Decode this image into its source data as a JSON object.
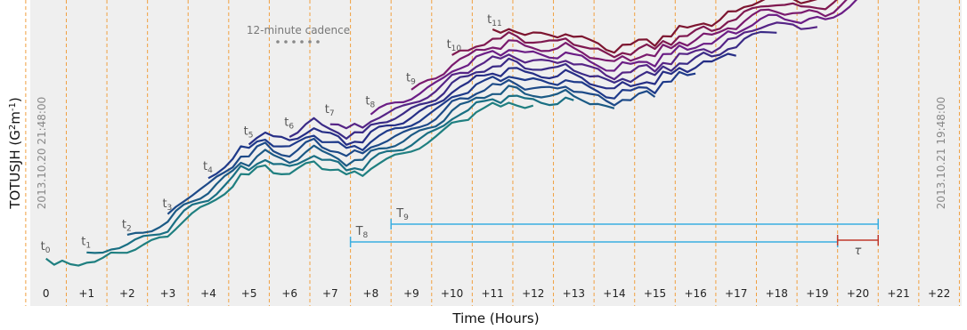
{
  "chart_data": {
    "type": "line",
    "title": "",
    "xlabel": "Time (Hours)",
    "ylabel_base": "TOTUSJH (G",
    "ylabel_sup1": "2",
    "ylabel_mid": "m",
    "ylabel_sup2": "-1",
    "ylabel_end": ")",
    "xlim": [
      -0.3,
      22.6
    ],
    "hour_ticks": [
      "0",
      "+1",
      "+2",
      "+3",
      "+4",
      "+5",
      "+6",
      "+7",
      "+8",
      "+9",
      "+10",
      "+11",
      "+12",
      "+13",
      "+14",
      "+15",
      "+16",
      "+17",
      "+18",
      "+19",
      "+20",
      "+21",
      "+22"
    ],
    "grid": "vertical dashed orange at every hour",
    "start_date": "2013.10.20 21:48:00",
    "end_date": "2013.10.21 19:48:00",
    "cadence_label": "12-minute cadence",
    "window_labels": [
      {
        "prefix": "t",
        "sub": "0",
        "hour": 0
      },
      {
        "prefix": "t",
        "sub": "1",
        "hour": 1
      },
      {
        "prefix": "t",
        "sub": "2",
        "hour": 2
      },
      {
        "prefix": "t",
        "sub": "3",
        "hour": 3
      },
      {
        "prefix": "t",
        "sub": "4",
        "hour": 4
      },
      {
        "prefix": "t",
        "sub": "5",
        "hour": 5
      },
      {
        "prefix": "t",
        "sub": "6",
        "hour": 6
      },
      {
        "prefix": "t",
        "sub": "7",
        "hour": 7
      },
      {
        "prefix": "t",
        "sub": "8",
        "hour": 8
      },
      {
        "prefix": "t",
        "sub": "9",
        "hour": 9
      },
      {
        "prefix": "t",
        "sub": "10",
        "hour": 10
      },
      {
        "prefix": "t",
        "sub": "11",
        "hour": 11
      }
    ],
    "intervals": [
      {
        "prefix": "T",
        "sub": "8",
        "start": 8,
        "end": 20,
        "color": "#3aaee0"
      },
      {
        "prefix": "T",
        "sub": "9",
        "start": 9,
        "end": 21,
        "color": "#3aaee0"
      },
      {
        "prefix": "τ",
        "sub": "",
        "start": 20,
        "end": 21,
        "color": "#c0392b"
      }
    ],
    "series_colors": [
      "#1f7f80",
      "#196f83",
      "#1b5a85",
      "#1d4a88",
      "#1e3a8a",
      "#262e86",
      "#3a2a86",
      "#552486",
      "#6b1d85",
      "#7a1a6e",
      "#7f1850",
      "#7d1530"
    ],
    "series_count": 12,
    "series_span_hours": 12,
    "base_curve": {
      "x": [
        0,
        0.2,
        0.4,
        0.7,
        1.0,
        1.3,
        1.6,
        2.0,
        2.3,
        2.6,
        3.0,
        3.3,
        3.6,
        4.0,
        4.3,
        4.6,
        4.8,
        5.0,
        5.2,
        5.4,
        5.6,
        5.8,
        6.0,
        6.2,
        6.4,
        6.6,
        6.8,
        7.0,
        7.2,
        7.4,
        7.6,
        7.8,
        8.0,
        8.2,
        8.5,
        8.8,
        9.0,
        9.3,
        9.6,
        9.8,
        10.0,
        10.2,
        10.4,
        10.6,
        10.8,
        11.0,
        11.2,
        11.4,
        11.6,
        11.8,
        12.0,
        12.3,
        12.6,
        12.9,
        13.0,
        13.2,
        13.4,
        13.6,
        13.8,
        14.0,
        14.2,
        14.4,
        14.6,
        14.8,
        15.0,
        15.2,
        15.4,
        15.6,
        15.8,
        16.0,
        16.2,
        16.4,
        16.6,
        16.8,
        17.0,
        17.2,
        17.4,
        17.6,
        17.8,
        18.0,
        18.2,
        18.4,
        18.6,
        18.8,
        19.0,
        19.2,
        19.4,
        19.6,
        19.8,
        20.0,
        20.2,
        20.4,
        20.6,
        20.8,
        21.0,
        21.2,
        21.4,
        21.6,
        21.8,
        22.0,
        22.2,
        22.4
      ],
      "y": [
        0.04,
        0.0,
        0.02,
        0.01,
        0.03,
        0.02,
        0.06,
        0.08,
        0.1,
        0.12,
        0.15,
        0.22,
        0.26,
        0.3,
        0.35,
        0.4,
        0.45,
        0.44,
        0.48,
        0.5,
        0.47,
        0.46,
        0.45,
        0.47,
        0.5,
        0.52,
        0.49,
        0.48,
        0.47,
        0.44,
        0.46,
        0.45,
        0.49,
        0.51,
        0.53,
        0.55,
        0.57,
        0.6,
        0.63,
        0.66,
        0.7,
        0.72,
        0.73,
        0.76,
        0.77,
        0.79,
        0.78,
        0.81,
        0.8,
        0.78,
        0.78,
        0.77,
        0.77,
        0.8,
        0.77,
        0.76,
        0.74,
        0.73,
        0.71,
        0.7,
        0.73,
        0.72,
        0.74,
        0.75,
        0.73,
        0.78,
        0.77,
        0.81,
        0.8,
        0.82,
        0.84,
        0.83,
        0.85,
        0.88,
        0.88,
        0.91,
        0.93,
        0.95,
        0.96,
        0.96,
        0.95,
        0.95,
        0.94,
        0.95,
        0.95,
        0.94,
        0.96,
        0.99,
        1.02,
        1.05,
        1.07,
        1.1,
        1.13,
        1.17,
        1.2,
        1.22,
        1.24,
        1.24,
        1.25,
        1.26,
        1.27,
        1.27
      ]
    }
  }
}
